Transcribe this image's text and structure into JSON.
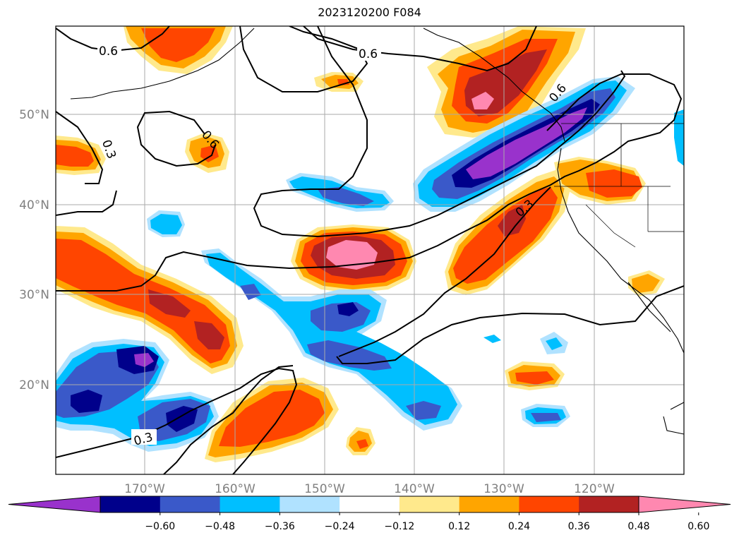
{
  "title": "2023120200 F084",
  "map": {
    "lat_labels": [
      "50°N",
      "40°N",
      "30°N",
      "20°N"
    ],
    "lon_labels": [
      "170°W",
      "160°W",
      "150°W",
      "140°W",
      "130°W",
      "120°W"
    ],
    "contour_labels": [
      {
        "text": "0.6"
      },
      {
        "text": "0.6"
      },
      {
        "text": "0.6"
      },
      {
        "text": "0.6"
      },
      {
        "text": "0.3"
      },
      {
        "text": "0.3"
      },
      {
        "text": "0.3"
      }
    ]
  },
  "colorbar": {
    "colors": [
      "#9932cc",
      "#00008b",
      "#3a59c9",
      "#00bfff",
      "#b0e2ff",
      "#ffffff",
      "#ffe98c",
      "#ffa500",
      "#ff4500",
      "#b22222",
      "#ff88b0"
    ],
    "labels": [
      "−0.60",
      "−0.48",
      "−0.36",
      "−0.24",
      "−0.12",
      "0.12",
      "0.24",
      "0.36",
      "0.48",
      "0.60"
    ]
  }
}
